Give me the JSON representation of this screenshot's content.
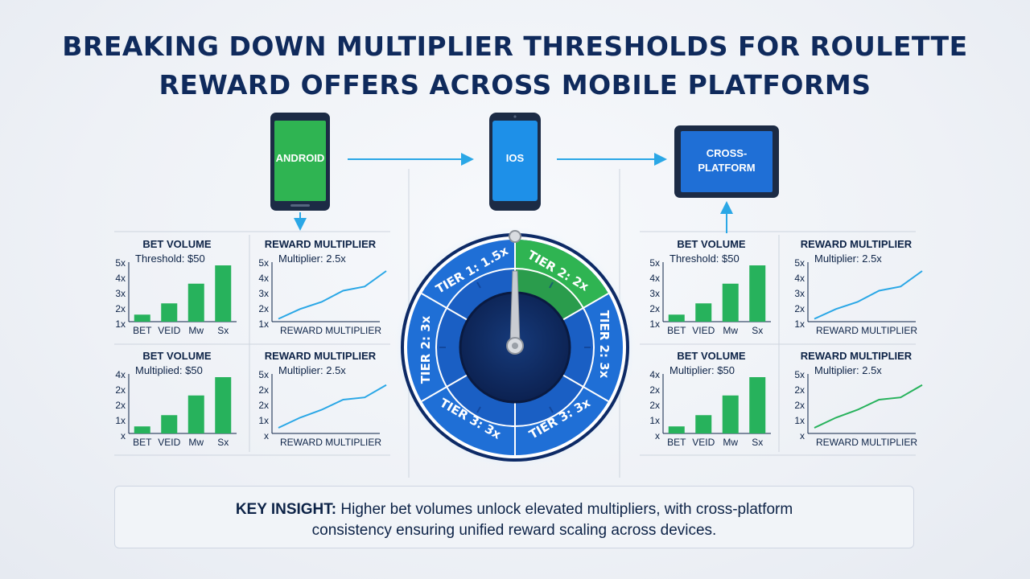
{
  "title": {
    "line1": "BREAKING DOWN MULTIPLIER THRESHOLDS FOR ROULETTE",
    "line2": "REWARD OFFERS ACROSS MOBILE PLATFORMS"
  },
  "devices": {
    "android": "ANDROID",
    "ios": "IOS",
    "cross_line1": "CROSS-",
    "cross_line2": "PLATFORM"
  },
  "colors": {
    "navy": "#0f2a5c",
    "bar_green": "#27b25c",
    "line_blue": "#2aa7e6",
    "line_green": "#27b25c",
    "wheel_blue": "#1f6fd6",
    "wheel_green": "#2fb452",
    "android_screen": "#2fb452",
    "ios_screen": "#1e90e8",
    "tablet_screen": "#1f6fd6"
  },
  "wheel": {
    "segments": [
      "TIER 1: 1.5x",
      "TIER 2: 2x",
      "TIER 2: 3x",
      "TIER 3: 3x",
      "TIER 3: 3x",
      "TIER 2: 3x"
    ]
  },
  "panels": {
    "bet_top_left": {
      "title": "BET VOLUME",
      "sub": "Threshold: $50",
      "y_ticks": [
        "5x",
        "4x",
        "3x",
        "2x",
        "1x"
      ],
      "x_ticks": [
        "BET",
        "VEID",
        "Mw",
        "Sx"
      ]
    },
    "reward_top_left": {
      "title": "REWARD MULTIPLIER",
      "sub": "Multiplier: 2.5x",
      "y_ticks": [
        "5x",
        "4x",
        "3x",
        "2x",
        "1x"
      ],
      "x_caption": "REWARD MULTIPLIER"
    },
    "bet_bottom_left": {
      "title": "BET VOLUME",
      "sub": "Multiplied: $50",
      "y_ticks": [
        "4x",
        "2x",
        "2x",
        "1x",
        "x"
      ],
      "x_ticks": [
        "BET",
        "VEID",
        "Mw",
        "Sx"
      ]
    },
    "reward_bottom_left": {
      "title": "REWARD MULTIPLIER",
      "sub": "Multiplier: 2.5x",
      "y_ticks": [
        "5x",
        "2x",
        "2x",
        "1x",
        "x"
      ],
      "x_caption": "REWARD MULTIPLIER"
    },
    "bet_top_right": {
      "title": "BET VOLUME",
      "sub": "Threshold: $50",
      "y_ticks": [
        "5x",
        "4x",
        "3x",
        "2x",
        "1x"
      ],
      "x_ticks": [
        "BET",
        "VIED",
        "Mw",
        "Sx"
      ]
    },
    "reward_top_right": {
      "title": "REWARD MULTIPLIER",
      "sub": "Multiplier: 2.5x",
      "y_ticks": [
        "5x",
        "4x",
        "3x",
        "2x",
        "1x"
      ],
      "x_caption": "REWARD MULTIPLIER"
    },
    "bet_bottom_right": {
      "title": "BET VOLUME",
      "sub": "Multiplier: $50",
      "y_ticks": [
        "4x",
        "2x",
        "2x",
        "1x",
        "x"
      ],
      "x_ticks": [
        "BET",
        "VEID",
        "Mw",
        "Sx"
      ]
    },
    "reward_bottom_right": {
      "title": "REWARD MULTIPLIER",
      "sub": "Multiplier: 2.5x",
      "y_ticks": [
        "5x",
        "2x",
        "2x",
        "1x",
        "x"
      ],
      "x_caption": "REWARD MULTIPLIER"
    }
  },
  "chart_data": [
    {
      "type": "bar",
      "title": "BET VOLUME",
      "subtitle": "Threshold: $50",
      "categories": [
        "BET",
        "VEID",
        "Mw",
        "Sx"
      ],
      "values": [
        1.5,
        2.3,
        3.7,
        5.0
      ],
      "ylim": [
        1,
        5
      ]
    },
    {
      "type": "line",
      "title": "REWARD MULTIPLIER",
      "subtitle": "Multiplier: 2.5x",
      "xlabel": "REWARD MULTIPLIER",
      "y": [
        1.2,
        1.9,
        2.4,
        3.2,
        3.5,
        4.6
      ],
      "ylim": [
        1,
        5
      ]
    },
    {
      "type": "bar",
      "title": "BET VOLUME",
      "subtitle": "Multiplied: $50",
      "categories": [
        "BET",
        "VEID",
        "Mw",
        "Sx"
      ],
      "values": [
        0.5,
        1.3,
        2.7,
        4.0
      ],
      "ylim": [
        0,
        4
      ]
    },
    {
      "type": "line",
      "title": "REWARD MULTIPLIER",
      "subtitle": "Multiplier: 2.5x",
      "xlabel": "REWARD MULTIPLIER",
      "y": [
        0.5,
        1.4,
        2.1,
        3.0,
        3.2,
        4.3
      ],
      "ylim": [
        0,
        5
      ]
    },
    {
      "type": "bar",
      "title": "BET VOLUME",
      "subtitle": "Threshold: $50",
      "categories": [
        "BET",
        "VIED",
        "Mw",
        "Sx"
      ],
      "values": [
        1.5,
        2.3,
        3.7,
        5.0
      ],
      "ylim": [
        1,
        5
      ]
    },
    {
      "type": "line",
      "title": "REWARD MULTIPLIER",
      "subtitle": "Multiplier: 2.5x",
      "xlabel": "REWARD MULTIPLIER",
      "y": [
        1.2,
        1.9,
        2.4,
        3.2,
        3.5,
        4.6
      ],
      "ylim": [
        1,
        5
      ]
    },
    {
      "type": "bar",
      "title": "BET VOLUME",
      "subtitle": "Multiplier: $50",
      "categories": [
        "BET",
        "VEID",
        "Mw",
        "Sx"
      ],
      "values": [
        0.5,
        1.3,
        2.7,
        4.0
      ],
      "ylim": [
        0,
        4
      ]
    },
    {
      "type": "line",
      "title": "REWARD MULTIPLIER",
      "subtitle": "Multiplier: 2.5x",
      "xlabel": "REWARD MULTIPLIER",
      "y": [
        0.5,
        1.4,
        2.1,
        3.0,
        3.2,
        4.3
      ],
      "ylim": [
        0,
        5
      ]
    }
  ],
  "insight": {
    "label": "KEY INSIGHT:",
    "line1": " Higher bet volumes unlock elevated multipliers, with cross-platform",
    "line2": "consistency ensuring unified reward scaling across devices."
  }
}
